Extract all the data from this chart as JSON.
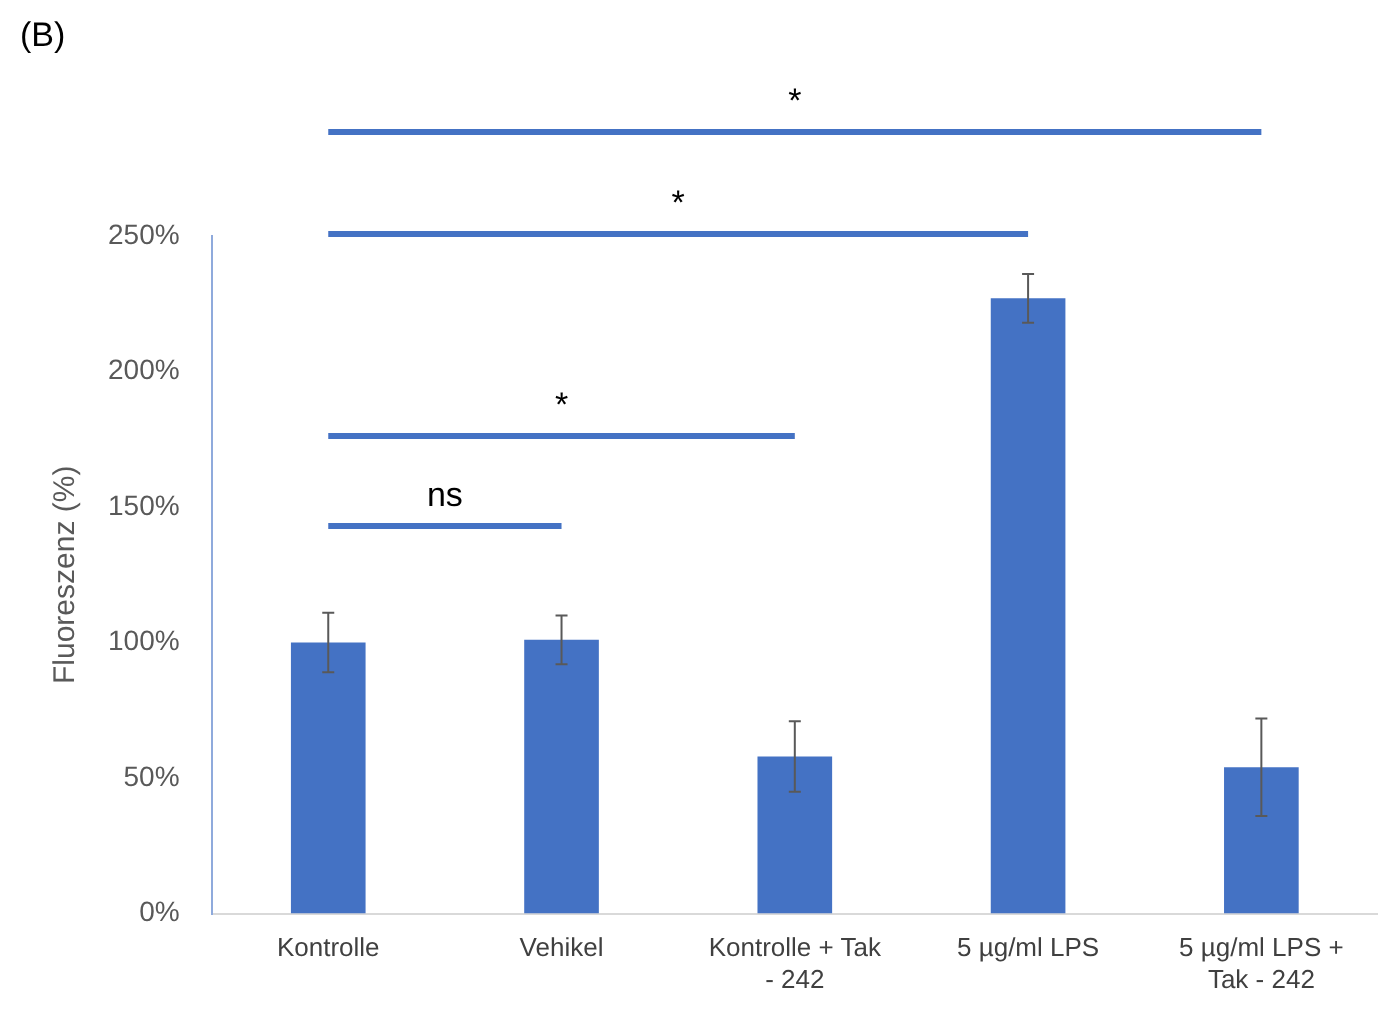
{
  "chart_data": {
    "type": "bar",
    "title": "(B)",
    "ylabel": "Fluoreszenz (%)",
    "categories": [
      "Kontrolle",
      "Vehikel",
      "Kontrolle + Tak - 242",
      "5 µg/ml LPS",
      "5 µg/ml LPS + Tak - 242"
    ],
    "values": [
      100,
      101,
      58,
      227,
      54
    ],
    "errors": [
      11,
      9,
      13,
      9,
      18
    ],
    "color": "#4472c4",
    "ylim": [
      0,
      250
    ],
    "yticks": [
      {
        "value": 0,
        "label": "0%"
      },
      {
        "value": 50,
        "label": "50%"
      },
      {
        "value": 100,
        "label": "100%"
      },
      {
        "value": 150,
        "label": "150%"
      },
      {
        "value": 200,
        "label": "200%"
      },
      {
        "value": 250,
        "label": "250%"
      }
    ],
    "annotations": [
      "ns",
      "*",
      "*",
      "*"
    ],
    "grid": false,
    "legend": false
  }
}
